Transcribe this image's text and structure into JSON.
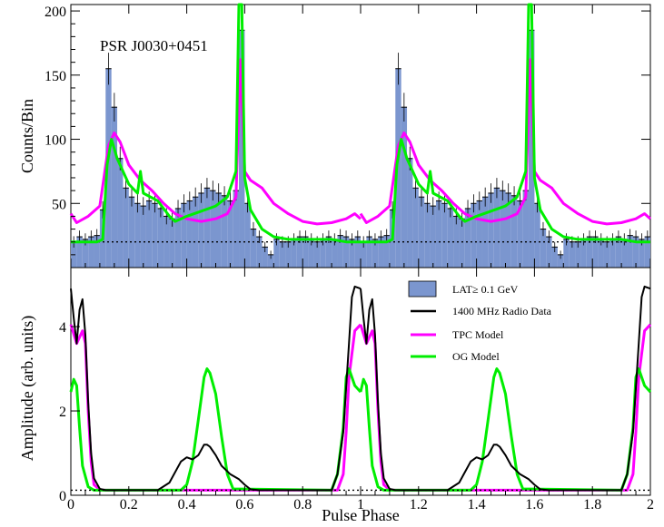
{
  "chart_data": [
    {
      "type": "bar",
      "panel": "top",
      "annotation": "PSR J0030+0451",
      "ylabel": "Counts/Bin",
      "ylim": [
        0,
        205
      ],
      "xlim": [
        0,
        2
      ],
      "yticks": [
        50,
        100,
        150,
        200
      ],
      "ytick_labels": [
        "50",
        "100",
        "150",
        "200"
      ],
      "background_level": 20,
      "series": [
        {
          "name": "LAT ≥ 0.1 GeV",
          "kind": "histogram",
          "color": "#7b96cf",
          "bin_width": 0.02,
          "values": [
            20,
            24,
            22,
            24,
            25,
            45,
            155,
            125,
            85,
            62,
            55,
            50,
            48,
            52,
            50,
            46,
            40,
            38,
            46,
            50,
            52,
            55,
            58,
            62,
            60,
            58,
            56,
            52,
            60,
            185,
            50,
            30,
            24,
            16,
            10,
            22,
            20,
            20,
            22,
            24,
            24,
            22,
            20,
            22,
            24,
            22,
            25,
            24,
            22,
            24
          ]
        },
        {
          "name": "TPC Model",
          "kind": "line",
          "color": "#ff00ff",
          "x": [
            0,
            0.02,
            0.06,
            0.1,
            0.13,
            0.15,
            0.17,
            0.2,
            0.24,
            0.28,
            0.32,
            0.36,
            0.4,
            0.45,
            0.5,
            0.54,
            0.57,
            0.585,
            0.6,
            0.62,
            0.66,
            0.7,
            0.75,
            0.8,
            0.85,
            0.9,
            0.95,
            0.98,
            1.0
          ],
          "y": [
            42,
            35,
            40,
            48,
            95,
            105,
            98,
            80,
            68,
            60,
            50,
            42,
            38,
            36,
            38,
            42,
            55,
            162,
            75,
            68,
            62,
            50,
            42,
            36,
            34,
            35,
            38,
            42,
            38
          ]
        },
        {
          "name": "OG Model",
          "kind": "line",
          "color": "#00ee00",
          "x": [
            0,
            0.05,
            0.09,
            0.11,
            0.125,
            0.14,
            0.16,
            0.2,
            0.23,
            0.24,
            0.25,
            0.3,
            0.34,
            0.36,
            0.4,
            0.45,
            0.5,
            0.54,
            0.57,
            0.58,
            0.59,
            0.6,
            0.62,
            0.66,
            0.7,
            0.75,
            0.8,
            0.85,
            0.9,
            0.95,
            1.0
          ],
          "y": [
            20,
            20,
            20,
            22,
            80,
            100,
            85,
            65,
            58,
            75,
            58,
            52,
            40,
            36,
            40,
            44,
            48,
            55,
            75,
            205,
            205,
            70,
            45,
            30,
            24,
            22,
            22,
            22,
            22,
            20,
            20
          ]
        }
      ]
    },
    {
      "type": "line",
      "panel": "bottom",
      "ylabel": "Amplitude (arb. units)",
      "xlabel": "Pulse Phase",
      "xlim": [
        0,
        2
      ],
      "ylim": [
        0,
        5.4
      ],
      "xticks": [
        0,
        0.2,
        0.4,
        0.6,
        0.8,
        1,
        1.2,
        1.4,
        1.6,
        1.8,
        2
      ],
      "xtick_labels": [
        "0",
        "0.2",
        "0.4",
        "0.6",
        "0.8",
        "1",
        "1.2",
        "1.4",
        "1.6",
        "1.8",
        "2"
      ],
      "yticks": [
        0,
        2,
        4
      ],
      "ytick_labels": [
        "0",
        "2",
        "4"
      ],
      "baseline": 0.12,
      "series": [
        {
          "name": "1400 MHz Radio Data",
          "color": "#000000",
          "x": [
            0,
            0.01,
            0.02,
            0.03,
            0.04,
            0.05,
            0.06,
            0.07,
            0.08,
            0.1,
            0.12,
            0.3,
            0.34,
            0.38,
            0.4,
            0.42,
            0.44,
            0.46,
            0.47,
            0.48,
            0.5,
            0.52,
            0.55,
            0.58,
            0.6,
            0.62,
            0.65,
            0.9,
            0.92,
            0.94,
            0.96,
            0.97,
            0.98,
            1.0
          ],
          "y": [
            4.9,
            4.2,
            3.6,
            4.4,
            4.65,
            3.8,
            2.2,
            1.0,
            0.4,
            0.15,
            0.12,
            0.12,
            0.3,
            0.8,
            0.9,
            0.85,
            0.95,
            1.2,
            1.2,
            1.15,
            0.95,
            0.7,
            0.5,
            0.38,
            0.25,
            0.14,
            0.12,
            0.12,
            0.5,
            1.5,
            3.6,
            4.7,
            4.95,
            4.9
          ]
        },
        {
          "name": "TPC Model",
          "color": "#ff00ff",
          "x": [
            0,
            0.02,
            0.04,
            0.05,
            0.06,
            0.07,
            0.08,
            0.1,
            0.12,
            0.92,
            0.94,
            0.95,
            0.96,
            0.98,
            1.0
          ],
          "y": [
            4.05,
            3.6,
            3.9,
            3.6,
            2.0,
            0.8,
            0.25,
            0.13,
            0.12,
            0.12,
            0.5,
            1.5,
            2.8,
            3.9,
            4.05
          ]
        },
        {
          "name": "OG Model",
          "color": "#00ee00",
          "x": [
            0,
            0.01,
            0.02,
            0.03,
            0.04,
            0.06,
            0.08,
            0.1,
            0.38,
            0.4,
            0.42,
            0.44,
            0.46,
            0.47,
            0.48,
            0.5,
            0.52,
            0.54,
            0.56,
            0.9,
            0.92,
            0.94,
            0.95,
            0.96,
            0.98,
            1.0
          ],
          "y": [
            2.45,
            2.75,
            2.6,
            1.6,
            0.7,
            0.2,
            0.12,
            0.12,
            0.12,
            0.25,
            0.8,
            1.8,
            2.8,
            3.0,
            2.9,
            2.4,
            1.4,
            0.5,
            0.15,
            0.12,
            0.5,
            1.6,
            2.8,
            3.0,
            2.6,
            2.45
          ]
        }
      ]
    }
  ],
  "legend": {
    "placement": "top-right of bottom panel",
    "entries": [
      {
        "label": "LAT≥ 0.1 GeV",
        "type": "box",
        "color": "#7b96cf"
      },
      {
        "label": "1400 MHz Radio Data",
        "type": "line",
        "color": "#000000"
      },
      {
        "label": "TPC Model",
        "type": "line",
        "color": "#ff00ff"
      },
      {
        "label": "OG Model",
        "type": "line",
        "color": "#00ee00"
      }
    ]
  }
}
